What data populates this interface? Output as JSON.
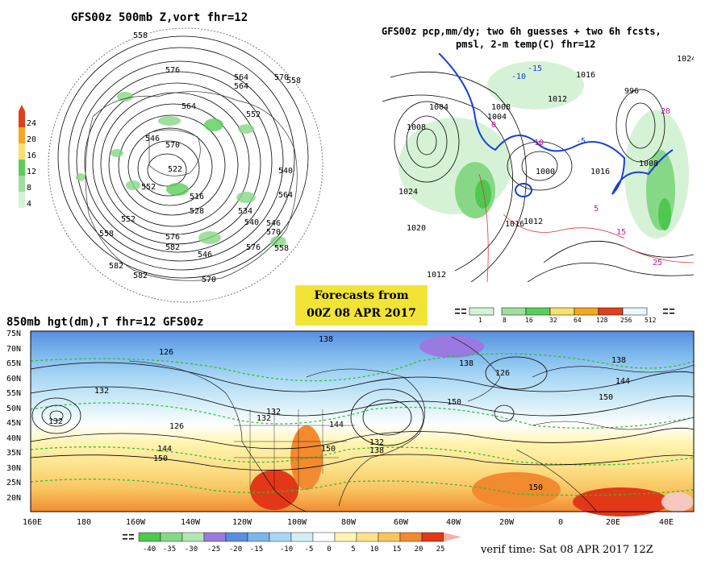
{
  "panel_500mb": {
    "title": "GFS00z  500mb Z,vort    fhr=12",
    "colorbar_ticks": [
      "24",
      "20",
      "16",
      "12",
      "8",
      "4"
    ],
    "contour_labels": [
      "558",
      "576",
      "564",
      "564",
      "570",
      "564",
      "552",
      "546",
      "540",
      "552",
      "570",
      "522",
      "516",
      "528",
      "534",
      "540",
      "552",
      "558",
      "546",
      "576",
      "570",
      "582",
      "558",
      "546",
      "570",
      "582",
      "576",
      "582",
      "558",
      "564"
    ]
  },
  "panel_precip": {
    "title_line1": "GFS00z pcp,mm/dy; two 6h guesses + two 6h fcsts,",
    "title_line2": "pmsl, 2-m temp(C)  fhr=12",
    "isobar_labels": [
      "1004",
      "1008",
      "1004",
      "1000",
      "1008",
      "1024",
      "1020",
      "1016",
      "1012",
      "1016",
      "996",
      "1016",
      "1012",
      "1024",
      "1008",
      "1012"
    ],
    "temp_labels": [
      "-15",
      "-10",
      "-5",
      "0",
      "5",
      "10",
      "15",
      "20",
      "25"
    ],
    "colorbar_ticks": [
      "1",
      "8",
      "16",
      "32",
      "64",
      "128",
      "256",
      "512"
    ]
  },
  "forecast_box": {
    "line1": "Forecasts from",
    "line2": "00Z 08 APR 2017"
  },
  "panel_850mb": {
    "title": "850mb hgt(dm),T  fhr=12 GFS00z",
    "lat_labels": [
      "75N",
      "70N",
      "65N",
      "60N",
      "55N",
      "50N",
      "45N",
      "40N",
      "35N",
      "30N",
      "25N",
      "20N"
    ],
    "lon_labels": [
      "160E",
      "180",
      "160W",
      "140W",
      "120W",
      "100W",
      "80W",
      "60W",
      "40W",
      "20W",
      "0",
      "20E",
      "40E"
    ],
    "height_labels": [
      "132",
      "138",
      "126",
      "132",
      "132",
      "150",
      "144",
      "132",
      "138",
      "126",
      "144",
      "138",
      "150",
      "138",
      "126",
      "150",
      "144",
      "132",
      "150",
      "150"
    ],
    "temp_colorbar_ticks": [
      "-40",
      "-35",
      "-30",
      "-25",
      "-20",
      "-15",
      "-10",
      "-5",
      "0",
      "5",
      "10",
      "15",
      "20",
      "25"
    ],
    "temp_colors": [
      "#4ec84e",
      "#86d886",
      "#b4e6b4",
      "#9a7ae0",
      "#5a8ee0",
      "#7ab6ec",
      "#a8d6f4",
      "#d4eef8",
      "#ffffff",
      "#fff4b0",
      "#fde28a",
      "#f8c460",
      "#f28a30",
      "#e23818"
    ],
    "verif_time": "verif time: Sat 08 APR 2017 12Z"
  }
}
